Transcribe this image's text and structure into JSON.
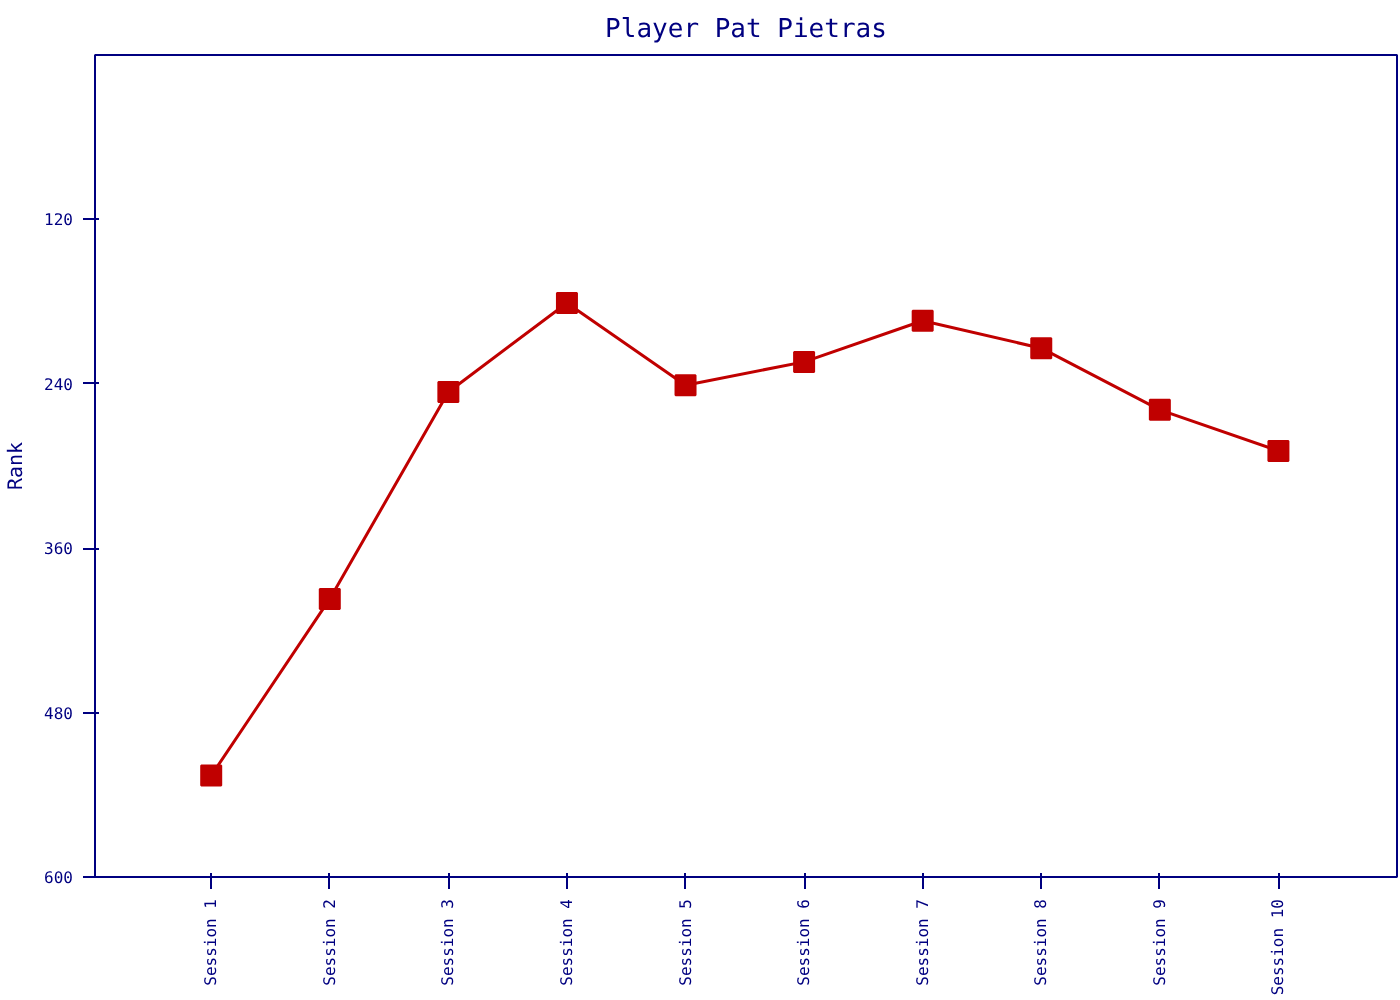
{
  "chart_data": {
    "type": "line",
    "title": "Player Pat Pietras",
    "ylabel": "Rank",
    "categories": [
      "Session 1",
      "Session 2",
      "Session 3",
      "Session 4",
      "Session 5",
      "Session 6",
      "Session 7",
      "Session 8",
      "Session 9",
      "Session 10"
    ],
    "series": [
      {
        "color": "#c00000",
        "values": [
          526,
          397,
          246,
          181,
          241,
          224,
          194,
          214,
          259,
          289
        ]
      }
    ],
    "ylim": [
      600,
      0
    ],
    "yticks": [
      120,
      240,
      360,
      480,
      600
    ],
    "grid": false,
    "marker": "square",
    "line_style": "solid"
  }
}
